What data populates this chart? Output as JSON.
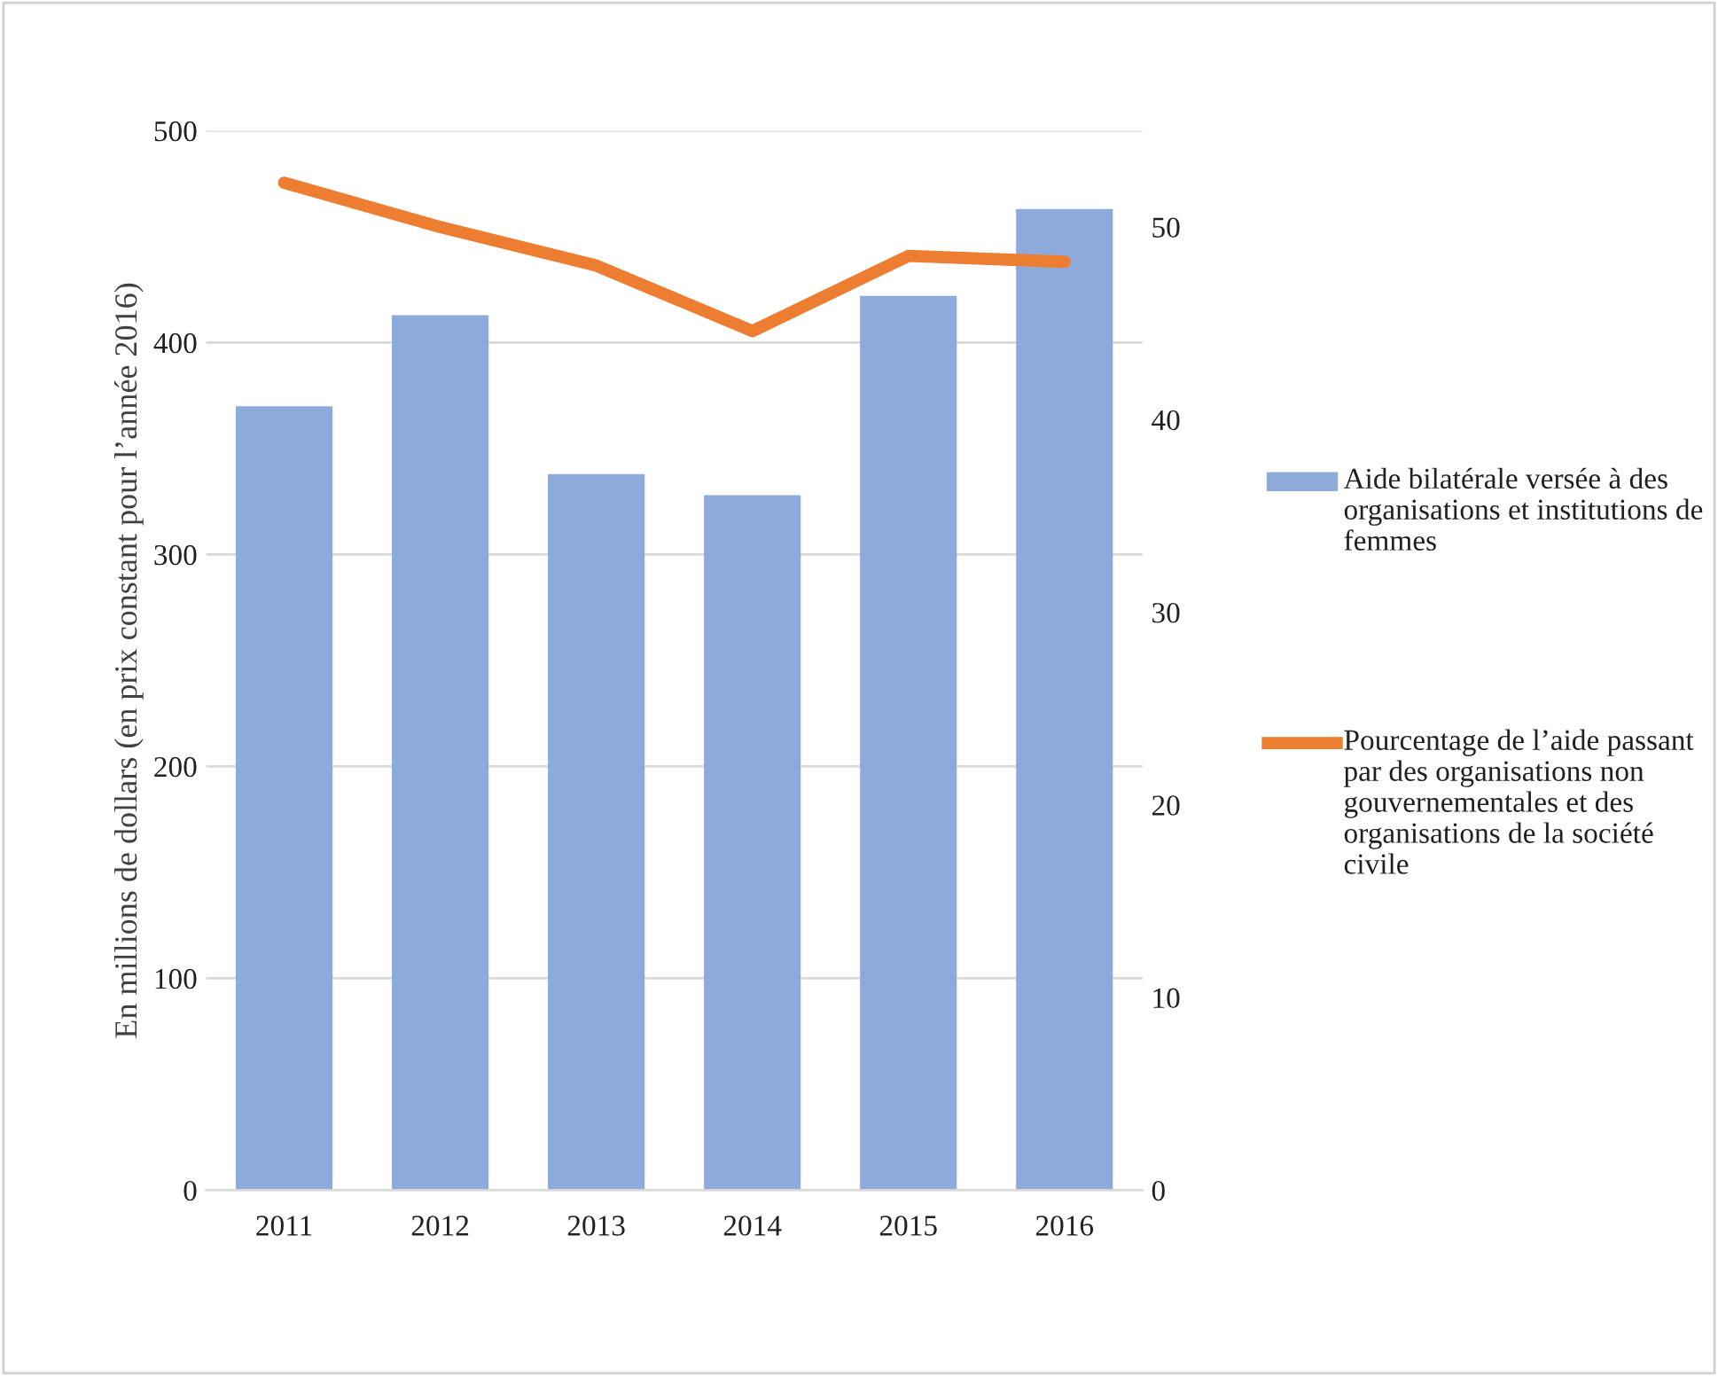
{
  "chart_data": {
    "type": "bar",
    "categories": [
      "2011",
      "2012",
      "2013",
      "2014",
      "2015",
      "2016"
    ],
    "ylabel": "En millions de dollars (en prix constant pour l’année 2016)",
    "ylim": [
      0,
      500
    ],
    "yticks": [
      0,
      100,
      200,
      300,
      400,
      500
    ],
    "y2lim": [
      0,
      55
    ],
    "y2ticks": [
      0,
      10,
      20,
      30,
      40,
      50
    ],
    "grid": "y",
    "legend": "right",
    "series": [
      {
        "name": "Aide bilatérale versée à des organisations et institutions de femmes",
        "color": "#8eaadb",
        "values": [
          370,
          413,
          338,
          328,
          422,
          463
        ]
      },
      {
        "name": "Pourcentage de l’aide passant par des organisations non gouvernementales et des organisations de la société civile",
        "color": "#ed7d31",
        "type": "line",
        "axis": "y2",
        "values": [
          52.3,
          50.0,
          48.0,
          44.6,
          48.5,
          48.2
        ]
      }
    ]
  }
}
